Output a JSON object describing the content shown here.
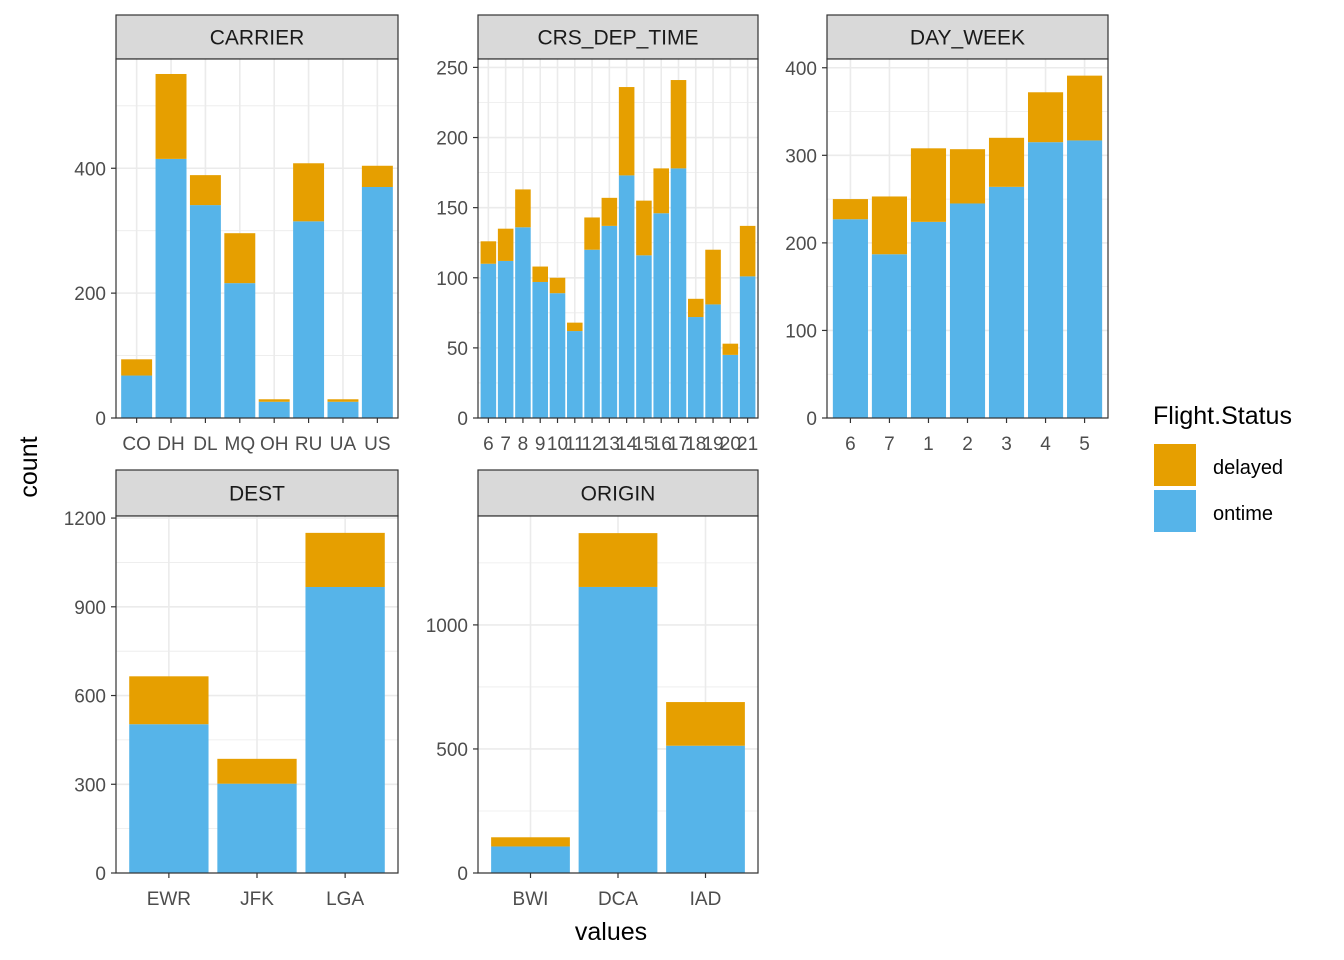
{
  "chart_data": {
    "type": "bar",
    "stacked": true,
    "xlabel": "values",
    "ylabel": "count",
    "legend": {
      "title": "Flight.Status",
      "placement": "right",
      "entries": [
        {
          "label": "delayed",
          "color": "#E69F00"
        },
        {
          "label": "ontime",
          "color": "#56B4E9"
        }
      ]
    },
    "grid": true,
    "facets": [
      {
        "title": "CARRIER",
        "categories": [
          "CO",
          "DH",
          "DL",
          "MQ",
          "OH",
          "RU",
          "UA",
          "US"
        ],
        "ontime": [
          68,
          415,
          341,
          216,
          26,
          315,
          26,
          370
        ],
        "delayed": [
          26,
          136,
          48,
          80,
          4,
          93,
          4,
          34
        ],
        "ylim": [
          0,
          575
        ],
        "yticks": [
          0,
          200,
          400
        ]
      },
      {
        "title": "CRS_DEP_TIME",
        "categories": [
          "6",
          "7",
          "8",
          "9",
          "10",
          "11",
          "12",
          "13",
          "14",
          "15",
          "16",
          "17",
          "18",
          "19",
          "20",
          "21"
        ],
        "ontime": [
          110,
          112,
          136,
          97,
          89,
          62,
          120,
          137,
          173,
          116,
          146,
          178,
          72,
          81,
          45,
          101
        ],
        "delayed": [
          16,
          23,
          27,
          11,
          11,
          6,
          23,
          20,
          63,
          39,
          32,
          63,
          13,
          39,
          8,
          36
        ],
        "ylim": [
          0,
          256
        ],
        "yticks": [
          0,
          50,
          100,
          150,
          200,
          250
        ]
      },
      {
        "title": "DAY_WEEK",
        "categories": [
          "6",
          "7",
          "1",
          "2",
          "3",
          "4",
          "5"
        ],
        "ontime": [
          227,
          187,
          224,
          245,
          264,
          315,
          317
        ],
        "delayed": [
          23,
          66,
          84,
          62,
          56,
          57,
          74
        ],
        "ylim": [
          0,
          410
        ],
        "yticks": [
          0,
          100,
          200,
          300,
          400
        ]
      },
      {
        "title": "DEST",
        "categories": [
          "EWR",
          "JFK",
          "LGA"
        ],
        "ontime": [
          503,
          302,
          967
        ],
        "delayed": [
          162,
          84,
          183
        ],
        "ylim": [
          0,
          1207
        ],
        "yticks": [
          0,
          300,
          600,
          900,
          1200
        ]
      },
      {
        "title": "ORIGIN",
        "categories": [
          "BWI",
          "DCA",
          "IAD"
        ],
        "ontime": [
          107,
          1153,
          513
        ],
        "delayed": [
          37,
          217,
          176
        ],
        "ylim": [
          0,
          1439
        ],
        "yticks": [
          0,
          500,
          1000
        ]
      }
    ]
  }
}
